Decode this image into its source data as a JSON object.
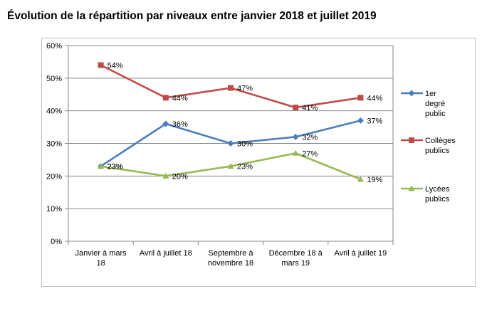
{
  "title": "Évolution de la répartition par niveaux entre janvier 2018 et juillet 2019",
  "chart_data": {
    "type": "line",
    "title": "Évolution de la répartition par niveaux entre janvier 2018 et juillet 2019",
    "categories": [
      [
        "Janvier à mars",
        "18"
      ],
      [
        "Avril à juillet 18"
      ],
      [
        "Septembre à",
        "novembre 18"
      ],
      [
        "Décembre 18 à",
        "mars 19"
      ],
      [
        "Avril à juillet 19"
      ]
    ],
    "y_ticks": [
      "0%",
      "10%",
      "20%",
      "30%",
      "40%",
      "50%",
      "60%"
    ],
    "ylim": [
      0,
      60
    ],
    "y_unit": "%",
    "grid": true,
    "legend_position": "right",
    "series": [
      {
        "name_lines": [
          "1er",
          "degré",
          "public"
        ],
        "values": [
          23,
          36,
          30,
          32,
          37
        ],
        "labels": [
          "23%",
          "36%",
          "30%",
          "32%",
          "37%"
        ],
        "color": "#4a7ebb",
        "marker": "diamond"
      },
      {
        "name_lines": [
          "Collèges",
          "publics"
        ],
        "values": [
          54,
          44,
          47,
          41,
          44
        ],
        "labels": [
          "54%",
          "44%",
          "47%",
          "41%",
          "44%"
        ],
        "color": "#be4b48",
        "marker": "square"
      },
      {
        "name_lines": [
          "Lycées",
          "publics"
        ],
        "values": [
          23,
          20,
          23,
          27,
          19
        ],
        "labels": [
          "23%",
          "20%",
          "23%",
          "27%",
          "19%"
        ],
        "color": "#98b954",
        "marker": "triangle"
      }
    ]
  }
}
